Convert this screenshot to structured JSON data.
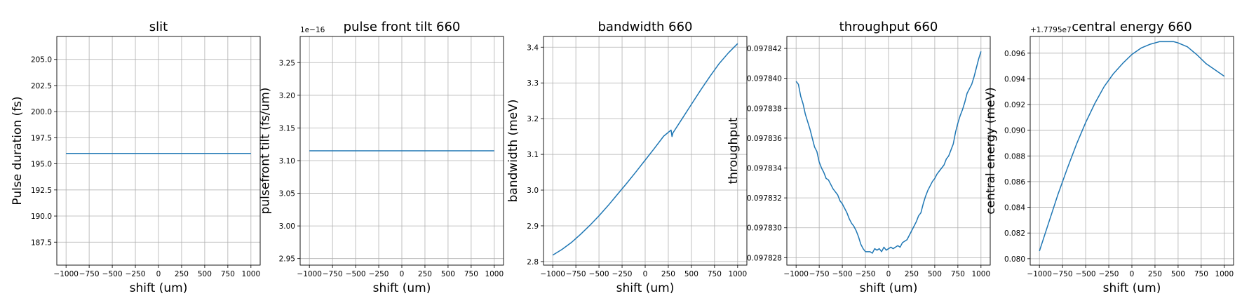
{
  "colors": {
    "line": "#1f77b4",
    "grid": "#b0b0b0",
    "axis": "#000000"
  },
  "chart_data": [
    {
      "type": "line",
      "title": "slit",
      "xlabel": "shift (um)",
      "ylabel": "Pulse duration (fs)",
      "offset_text": "",
      "xlim": [
        -1100,
        1100
      ],
      "ylim": [
        185.3,
        207.2
      ],
      "xticks": [
        -1000,
        -750,
        -500,
        -250,
        0,
        250,
        500,
        750,
        1000
      ],
      "xtick_labels": [
        "−1000",
        "−750",
        "−500",
        "−250",
        "0",
        "250",
        "500",
        "750",
        "1000"
      ],
      "yticks": [
        187.5,
        190.0,
        192.5,
        195.0,
        197.5,
        200.0,
        202.5,
        205.0
      ],
      "ytick_labels": [
        "187.5",
        "190.0",
        "192.5",
        "195.0",
        "197.5",
        "200.0",
        "202.5",
        "205.0"
      ],
      "grid": true,
      "x": [
        -1000,
        1000
      ],
      "y": [
        196.0,
        196.0
      ]
    },
    {
      "type": "line",
      "title": "pulse front tilt 660",
      "xlabel": "shift (um)",
      "ylabel": "pulsefront tilt (fs/um)",
      "offset_text": "1e−16",
      "xlim": [
        -1100,
        1100
      ],
      "ylim": [
        2.94,
        3.29
      ],
      "xticks": [
        -1000,
        -750,
        -500,
        -250,
        0,
        250,
        500,
        750,
        1000
      ],
      "xtick_labels": [
        "−1000",
        "−750",
        "−500",
        "−250",
        "0",
        "250",
        "500",
        "750",
        "1000"
      ],
      "yticks": [
        2.95,
        3.0,
        3.05,
        3.1,
        3.15,
        3.2,
        3.25
      ],
      "ytick_labels": [
        "2.95",
        "3.00",
        "3.05",
        "3.10",
        "3.15",
        "3.20",
        "3.25"
      ],
      "grid": true,
      "x": [
        -1000,
        1000
      ],
      "y": [
        3.115,
        3.115
      ]
    },
    {
      "type": "line",
      "title": "bandwidth 660",
      "xlabel": "shift (um)",
      "ylabel": "bandwidth (meV)",
      "offset_text": "",
      "xlim": [
        -1100,
        1100
      ],
      "ylim": [
        2.79,
        3.43
      ],
      "xticks": [
        -1000,
        -750,
        -500,
        -250,
        0,
        250,
        500,
        750,
        1000
      ],
      "xtick_labels": [
        "−1000",
        "−750",
        "−500",
        "−250",
        "0",
        "250",
        "500",
        "750",
        "1000"
      ],
      "yticks": [
        2.8,
        2.9,
        3.0,
        3.1,
        3.2,
        3.3,
        3.4
      ],
      "ytick_labels": [
        "2.8",
        "2.9",
        "3.0",
        "3.1",
        "3.2",
        "3.3",
        "3.4"
      ],
      "grid": true,
      "x": [
        -1000,
        -900,
        -800,
        -700,
        -600,
        -500,
        -400,
        -300,
        -200,
        -100,
        0,
        100,
        200,
        280,
        290,
        300,
        400,
        500,
        600,
        700,
        800,
        900,
        1000
      ],
      "y": [
        2.818,
        2.834,
        2.853,
        2.876,
        2.901,
        2.928,
        2.957,
        2.988,
        3.019,
        3.051,
        3.084,
        3.117,
        3.151,
        3.168,
        3.15,
        3.16,
        3.2,
        3.24,
        3.28,
        3.318,
        3.354,
        3.384,
        3.41
      ]
    },
    {
      "type": "line",
      "title": "throughput 660",
      "xlabel": "shift (um)",
      "ylabel": "throughput",
      "offset_text": "",
      "xlim": [
        -1100,
        1100
      ],
      "ylim": [
        0.0978275,
        0.0978428
      ],
      "xticks": [
        -1000,
        -750,
        -500,
        -250,
        0,
        250,
        500,
        750,
        1000
      ],
      "xtick_labels": [
        "−1000",
        "−750",
        "−500",
        "−250",
        "0",
        "250",
        "500",
        "750",
        "1000"
      ],
      "yticks": [
        0.097828,
        0.09783,
        0.097832,
        0.097834,
        0.097836,
        0.097838,
        0.09784,
        0.097842
      ],
      "ytick_labels": [
        "0.097828",
        "0.097830",
        "0.097832",
        "0.097834",
        "0.097836",
        "0.097838",
        "0.097840",
        "0.097842"
      ],
      "grid": true,
      "x": [
        -1000,
        -975,
        -950,
        -925,
        -900,
        -875,
        -850,
        -825,
        -800,
        -775,
        -750,
        -725,
        -700,
        -675,
        -650,
        -625,
        -600,
        -575,
        -550,
        -525,
        -500,
        -475,
        -450,
        -425,
        -400,
        -375,
        -350,
        -325,
        -300,
        -275,
        -250,
        -225,
        -200,
        -175,
        -150,
        -125,
        -100,
        -75,
        -50,
        -25,
        0,
        25,
        50,
        75,
        100,
        125,
        150,
        175,
        200,
        225,
        250,
        275,
        300,
        325,
        350,
        375,
        400,
        425,
        450,
        475,
        500,
        525,
        550,
        575,
        600,
        625,
        650,
        675,
        700,
        725,
        750,
        775,
        800,
        825,
        850,
        875,
        900,
        925,
        950,
        975,
        1000
      ],
      "y": [
        0.0978398,
        0.0978396,
        0.0978388,
        0.0978383,
        0.0978376,
        0.0978371,
        0.0978366,
        0.097836,
        0.0978354,
        0.0978351,
        0.0978344,
        0.097834,
        0.0978337,
        0.0978333,
        0.0978332,
        0.0978329,
        0.0978326,
        0.0978324,
        0.0978322,
        0.0978318,
        0.0978316,
        0.0978313,
        0.097831,
        0.0978306,
        0.0978303,
        0.0978301,
        0.0978298,
        0.0978294,
        0.0978289,
        0.0978286,
        0.0978284,
        0.0978284,
        0.0978284,
        0.0978283,
        0.0978286,
        0.0978285,
        0.0978286,
        0.0978284,
        0.0978287,
        0.0978285,
        0.0978286,
        0.0978287,
        0.0978286,
        0.0978287,
        0.0978288,
        0.0978287,
        0.097829,
        0.0978291,
        0.0978292,
        0.0978295,
        0.0978298,
        0.0978301,
        0.0978304,
        0.0978308,
        0.097831,
        0.0978316,
        0.0978321,
        0.0978325,
        0.0978328,
        0.0978331,
        0.0978333,
        0.0978336,
        0.0978338,
        0.097834,
        0.0978342,
        0.0978346,
        0.0978348,
        0.0978352,
        0.0978356,
        0.0978364,
        0.097837,
        0.0978375,
        0.0978379,
        0.0978384,
        0.097839,
        0.0978393,
        0.0978396,
        0.0978401,
        0.0978407,
        0.0978413,
        0.0978418
      ]
    },
    {
      "type": "line",
      "title": "central energy 660",
      "xlabel": "shift (um)",
      "ylabel": "central energy (meV)",
      "offset_text": "+1.7795e7",
      "xlim": [
        -1100,
        1100
      ],
      "ylim": [
        0.0795,
        0.0973
      ],
      "xticks": [
        -1000,
        -750,
        -500,
        -250,
        0,
        250,
        500,
        750,
        1000
      ],
      "xtick_labels": [
        "−1000",
        "−750",
        "−500",
        "−250",
        "0",
        "250",
        "500",
        "750",
        "1000"
      ],
      "yticks": [
        0.08,
        0.082,
        0.084,
        0.086,
        0.088,
        0.09,
        0.092,
        0.094,
        0.096
      ],
      "ytick_labels": [
        "0.080",
        "0.082",
        "0.084",
        "0.086",
        "0.088",
        "0.090",
        "0.092",
        "0.094",
        "0.096"
      ],
      "grid": true,
      "x": [
        -1000,
        -900,
        -800,
        -700,
        -600,
        -500,
        -400,
        -300,
        -200,
        -100,
        0,
        100,
        200,
        300,
        400,
        450,
        500,
        600,
        700,
        800,
        900,
        1000
      ],
      "y": [
        0.0806,
        0.0828,
        0.085,
        0.087,
        0.0889,
        0.0906,
        0.0921,
        0.0934,
        0.0944,
        0.0952,
        0.0959,
        0.0964,
        0.0967,
        0.0969,
        0.0969,
        0.0969,
        0.0968,
        0.0965,
        0.0959,
        0.0952,
        0.0947,
        0.0942
      ]
    }
  ]
}
